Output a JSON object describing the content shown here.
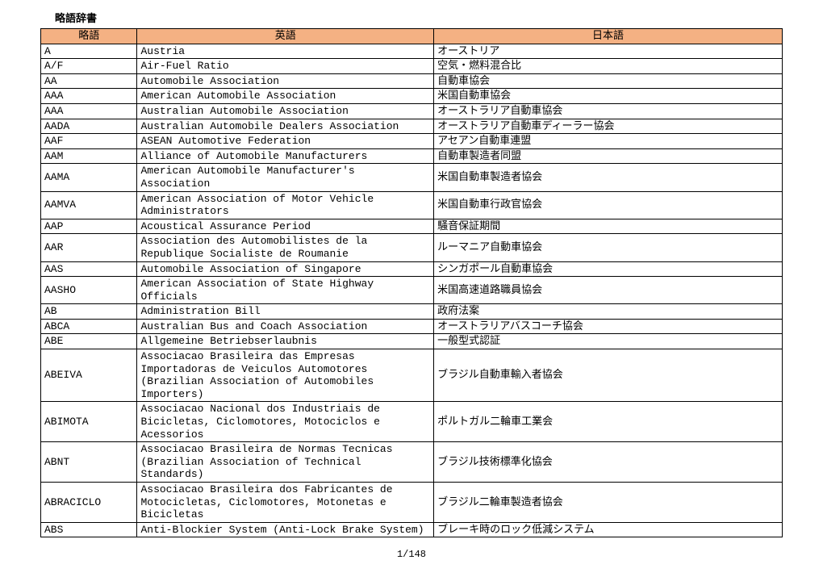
{
  "title": "略語辞書",
  "page_indicator": "1/148",
  "columns": {
    "abbr": "略語",
    "english": "英語",
    "japanese": "日本語"
  },
  "header_bg": "#f4b183",
  "border_color": "#000000",
  "background_color": "#ffffff",
  "font_family": "MS Gothic / Courier New",
  "font_size_pt": 10,
  "rows": [
    {
      "abbr": "A",
      "en": "Austria",
      "jp": "オーストリア"
    },
    {
      "abbr": "A/F",
      "en": "Air-Fuel Ratio",
      "jp": "空気・燃料混合比"
    },
    {
      "abbr": "AA",
      "en": "Automobile Association",
      "jp": "自動車協会"
    },
    {
      "abbr": "AAA",
      "en": "American Automobile Association",
      "jp": "米国自動車協会"
    },
    {
      "abbr": "AAA",
      "en": "Australian Automobile Association",
      "jp": "オーストラリア自動車協会"
    },
    {
      "abbr": "AADA",
      "en": "Australian Automobile Dealers Association",
      "jp": "オーストラリア自動車ディーラー協会"
    },
    {
      "abbr": "AAF",
      "en": "ASEAN Automotive Federation",
      "jp": "アセアン自動車連盟"
    },
    {
      "abbr": "AAM",
      "en": "Alliance of Automobile Manufacturers",
      "jp": "自動車製造者同盟"
    },
    {
      "abbr": "AAMA",
      "en": "American Automobile Manufacturer's Association",
      "jp": "米国自動車製造者協会"
    },
    {
      "abbr": "AAMVA",
      "en": "American Association of Motor Vehicle Administrators",
      "jp": "米国自動車行政官協会"
    },
    {
      "abbr": "AAP",
      "en": "Acoustical Assurance Period",
      "jp": "騒音保証期間"
    },
    {
      "abbr": "AAR",
      "en": "Association des Automobilistes de la Republique Socialiste de Roumanie",
      "jp": "ルーマニア自動車協会"
    },
    {
      "abbr": "AAS",
      "en": "Automobile Association of Singapore",
      "jp": "シンガポール自動車協会"
    },
    {
      "abbr": "AASHO",
      "en": "American Association of State Highway Officials",
      "jp": "米国高速道路職員協会"
    },
    {
      "abbr": "AB",
      "en": "Administration Bill",
      "jp": "政府法案"
    },
    {
      "abbr": "ABCA",
      "en": "Australian Bus and Coach Association",
      "jp": "オーストラリアバスコーチ協会"
    },
    {
      "abbr": "ABE",
      "en": "Allgemeine Betriebserlaubnis",
      "jp": "一般型式認証"
    },
    {
      "abbr": "ABEIVA",
      "en": "Associacao Brasileira das Empresas Importadoras de Veiculos Automotores (Brazilian Association of Automobiles Importers)",
      "jp": "ブラジル自動車輸入者協会"
    },
    {
      "abbr": "ABIMOTA",
      "en": "Associacao Nacional dos Industriais de Bicicletas, Ciclomotores, Motociclos e Acessorios",
      "jp": "ポルトガル二輪車工業会"
    },
    {
      "abbr": "ABNT",
      "en": "Associacao Brasileira de Normas Tecnicas (Brazilian Association of Technical Standards)",
      "jp": "ブラジル技術標準化協会"
    },
    {
      "abbr": "ABRACICLO",
      "en": "Associacao Brasileira dos Fabricantes de Motocicletas, Ciclomotores, Motonetas e Bicicletas",
      "jp": "ブラジル二輪車製造者協会"
    },
    {
      "abbr": "ABS",
      "en": "Anti-Blockier System (Anti-Lock Brake System)",
      "jp": "ブレーキ時のロック低減システム"
    }
  ]
}
